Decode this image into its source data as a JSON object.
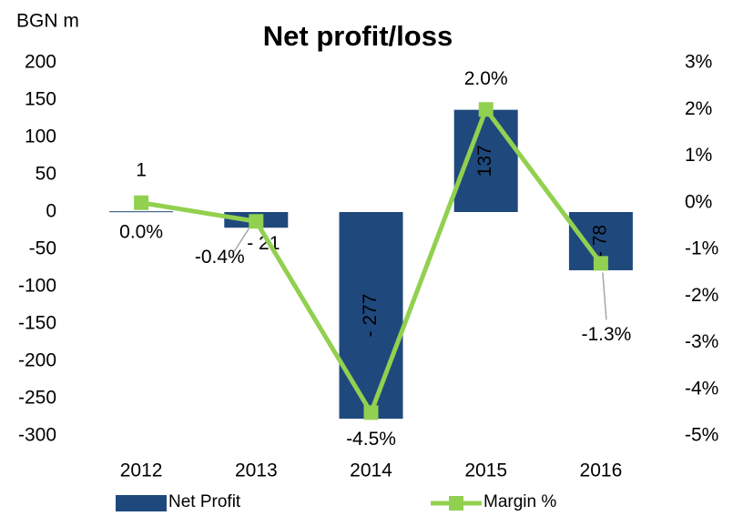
{
  "chart_data": {
    "type": "bar-line",
    "title": "Net profit/loss",
    "y_label": "BGN m",
    "categories": [
      "2012",
      "2013",
      "2014",
      "2015",
      "2016"
    ],
    "series": [
      {
        "name": "Net Profit",
        "type": "bar",
        "color": "#1f497d",
        "values": [
          1,
          -21,
          -277,
          137,
          -78
        ],
        "value_labels": [
          "1",
          "- 21",
          "- 277",
          "137",
          "- 78"
        ]
      },
      {
        "name": "Margin %",
        "type": "line",
        "axis": "y2",
        "color": "#92d050",
        "values": [
          0.0,
          -0.4,
          -4.5,
          2.0,
          -1.3
        ],
        "value_labels": [
          "0.0%",
          "-0.4%",
          "-4.5%",
          "2.0%",
          "-1.3%"
        ]
      }
    ],
    "ylim": [
      -300,
      200
    ],
    "yticks": [
      200,
      150,
      100,
      50,
      0,
      -50,
      -100,
      -150,
      -200,
      -250,
      -300
    ],
    "y2lim": [
      -5,
      3
    ],
    "y2ticks": [
      {
        "value": 3,
        "label": "3%"
      },
      {
        "value": 2,
        "label": "2%"
      },
      {
        "value": 1,
        "label": "1%"
      },
      {
        "value": 0,
        "label": "0%"
      },
      {
        "value": -1,
        "label": "-1%"
      },
      {
        "value": -2,
        "label": "-2%"
      },
      {
        "value": -3,
        "label": "-3%"
      },
      {
        "value": -4,
        "label": "-4%"
      },
      {
        "value": -5,
        "label": "-5%"
      }
    ],
    "legend": "bottom",
    "grid": false
  }
}
